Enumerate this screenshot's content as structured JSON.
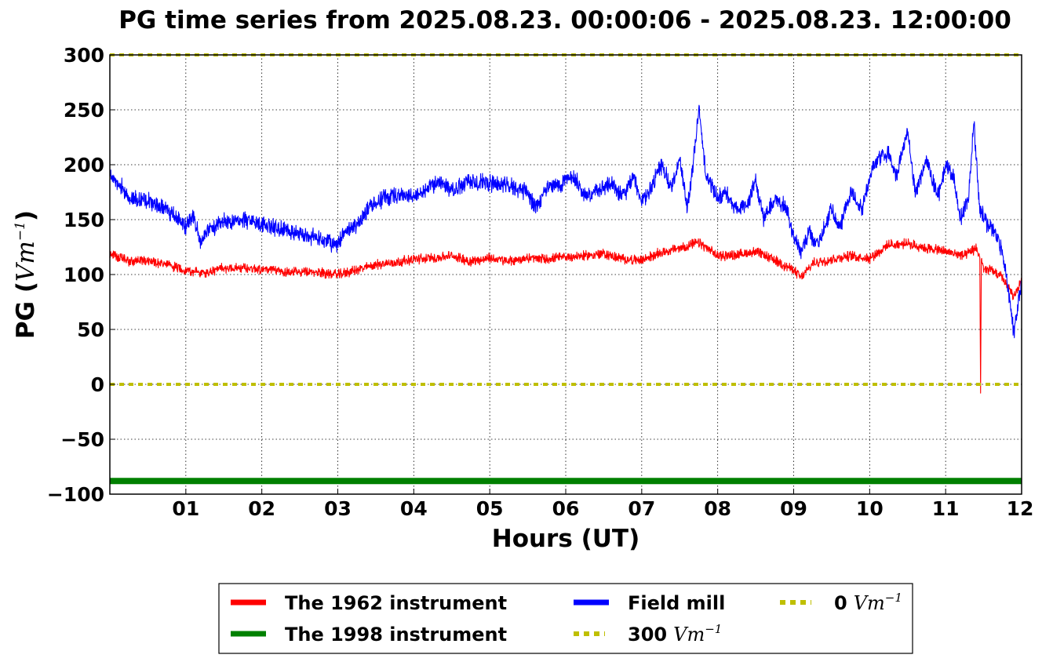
{
  "chart_data": {
    "type": "line",
    "title": "PG time series from 2025.08.23. 00:00:06 - 2025.08.23. 12:00:00",
    "xlabel": "Hours (UT)",
    "ylabel": "PG (",
    "ylabel_unit": "Vm",
    "ylabel_exp": "−1",
    "ylabel_close": ")",
    "xlim": [
      0,
      12
    ],
    "ylim": [
      -100,
      300
    ],
    "x_ticks": [
      "01",
      "02",
      "03",
      "04",
      "05",
      "06",
      "07",
      "08",
      "09",
      "10",
      "11",
      "12"
    ],
    "x_tick_values": [
      1,
      2,
      3,
      4,
      5,
      6,
      7,
      8,
      9,
      10,
      11,
      12
    ],
    "y_ticks": [
      "300",
      "250",
      "200",
      "150",
      "100",
      "50",
      "0",
      "−50",
      "−100"
    ],
    "y_tick_values": [
      300,
      250,
      200,
      150,
      100,
      50,
      0,
      -50,
      -100
    ],
    "grid": true,
    "legend_placement": "below",
    "series": [
      {
        "name": "The 1962 instrument",
        "color": "#ff0000",
        "style": "solid",
        "x": [
          0,
          0.25,
          0.5,
          0.75,
          1,
          1.25,
          1.5,
          1.75,
          2,
          2.25,
          2.5,
          2.75,
          3,
          3.25,
          3.5,
          3.75,
          4,
          4.25,
          4.5,
          4.75,
          5,
          5.25,
          5.5,
          5.75,
          6,
          6.25,
          6.5,
          6.75,
          7,
          7.25,
          7.5,
          7.75,
          8,
          8.25,
          8.5,
          8.75,
          9,
          9.1,
          9.25,
          9.5,
          9.75,
          10,
          10.25,
          10.5,
          10.75,
          11,
          11.25,
          11.4,
          11.45,
          11.46,
          11.47,
          11.5,
          11.6,
          11.75,
          11.9,
          12
        ],
        "y": [
          119,
          112,
          113,
          109,
          104,
          101,
          106,
          106,
          105,
          103,
          102,
          102,
          100,
          104,
          109,
          111,
          114,
          115,
          117,
          112,
          115,
          112,
          115,
          114,
          116,
          117,
          119,
          114,
          113,
          120,
          124,
          129,
          117,
          118,
          121,
          113,
          104,
          97,
          110,
          114,
          117,
          115,
          127,
          128,
          124,
          121,
          117,
          124,
          116,
          -8,
          116,
          104,
          104,
          97,
          79,
          96
        ]
      },
      {
        "name": "The 1998 instrument",
        "color": "#008000",
        "style": "thick",
        "x": [
          0,
          12
        ],
        "y": [
          -88,
          -88
        ]
      },
      {
        "name": "Field mill",
        "color": "#0000ff",
        "style": "solid",
        "x": [
          0,
          0.1,
          0.25,
          0.5,
          0.75,
          0.9,
          1,
          1.1,
          1.2,
          1.3,
          1.5,
          1.75,
          2,
          2.25,
          2.5,
          2.75,
          2.9,
          3,
          3.1,
          3.25,
          3.4,
          3.6,
          3.8,
          4,
          4.2,
          4.4,
          4.5,
          4.6,
          4.75,
          5,
          5.25,
          5.5,
          5.6,
          5.75,
          6,
          6.1,
          6.25,
          6.5,
          6.6,
          6.75,
          6.9,
          7,
          7.1,
          7.25,
          7.4,
          7.5,
          7.6,
          7.7,
          7.75,
          7.85,
          8,
          8.1,
          8.25,
          8.4,
          8.5,
          8.6,
          8.75,
          8.9,
          9,
          9.1,
          9.2,
          9.3,
          9.5,
          9.6,
          9.75,
          9.9,
          10,
          10.1,
          10.25,
          10.35,
          10.5,
          10.6,
          10.75,
          10.9,
          11,
          11.1,
          11.2,
          11.3,
          11.37,
          11.45,
          11.55,
          11.65,
          11.75,
          11.85,
          11.9,
          12
        ],
        "y": [
          190,
          185,
          170,
          168,
          158,
          150,
          143,
          155,
          130,
          140,
          148,
          150,
          146,
          142,
          137,
          133,
          128,
          127,
          140,
          145,
          160,
          170,
          172,
          170,
          180,
          185,
          175,
          180,
          185,
          183,
          182,
          175,
          160,
          178,
          185,
          190,
          172,
          178,
          183,
          170,
          190,
          165,
          175,
          200,
          180,
          205,
          160,
          215,
          250,
          190,
          170,
          175,
          160,
          165,
          185,
          150,
          170,
          160,
          135,
          120,
          140,
          125,
          160,
          140,
          175,
          160,
          190,
          205,
          210,
          190,
          230,
          175,
          205,
          170,
          200,
          190,
          150,
          170,
          240,
          160,
          145,
          140,
          120,
          75,
          45,
          95
        ]
      },
      {
        "name": "300",
        "name_unit": "Vm",
        "name_exp": "−1",
        "color": "#bfbf00",
        "style": "dotted",
        "x": [
          0,
          12
        ],
        "y": [
          300,
          300
        ]
      },
      {
        "name": "0",
        "name_unit": "Vm",
        "name_exp": "−1",
        "color": "#bfbf00",
        "style": "dotted",
        "x": [
          0,
          12
        ],
        "y": [
          0,
          0
        ]
      }
    ]
  }
}
